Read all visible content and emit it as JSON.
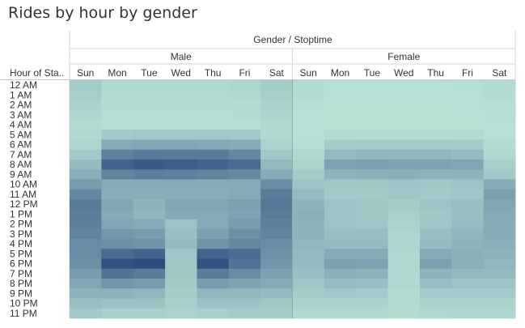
{
  "title": "Rides by hour by gender",
  "chart_data": {
    "type": "heatmap",
    "title": "Rides by hour by gender",
    "column_header": "Gender / Stoptime",
    "row_header": "Hour of Sta..",
    "groups": [
      "Male",
      "Female"
    ],
    "days": [
      "Sun",
      "Mon",
      "Tue",
      "Wed",
      "Thu",
      "Fri",
      "Sat"
    ],
    "hours": [
      "12 AM",
      "1 AM",
      "2 AM",
      "3 AM",
      "4 AM",
      "5 AM",
      "6 AM",
      "7 AM",
      "8 AM",
      "9 AM",
      "10 AM",
      "11 AM",
      "12 PM",
      "1 PM",
      "2 PM",
      "3 PM",
      "4 PM",
      "5 PM",
      "6 PM",
      "7 PM",
      "8 PM",
      "9 PM",
      "10 PM",
      "11 PM"
    ],
    "color_scale": [
      "#b9e3d7",
      "#24467a"
    ],
    "values": {
      "Male": [
        [
          0.15,
          0.06,
          0.06,
          0.06,
          0.06,
          0.08,
          0.14
        ],
        [
          0.13,
          0.05,
          0.05,
          0.05,
          0.05,
          0.06,
          0.13
        ],
        [
          0.11,
          0.04,
          0.04,
          0.04,
          0.04,
          0.05,
          0.11
        ],
        [
          0.08,
          0.03,
          0.03,
          0.03,
          0.03,
          0.04,
          0.09
        ],
        [
          0.05,
          0.03,
          0.03,
          0.03,
          0.03,
          0.03,
          0.06
        ],
        [
          0.06,
          0.16,
          0.17,
          0.17,
          0.17,
          0.16,
          0.06
        ],
        [
          0.08,
          0.35,
          0.38,
          0.38,
          0.37,
          0.35,
          0.1
        ],
        [
          0.16,
          0.62,
          0.66,
          0.65,
          0.65,
          0.58,
          0.17
        ],
        [
          0.25,
          0.8,
          0.86,
          0.84,
          0.8,
          0.76,
          0.26
        ],
        [
          0.33,
          0.6,
          0.63,
          0.62,
          0.6,
          0.57,
          0.35
        ],
        [
          0.45,
          0.35,
          0.35,
          0.36,
          0.35,
          0.36,
          0.55
        ],
        [
          0.58,
          0.33,
          0.33,
          0.34,
          0.33,
          0.35,
          0.65
        ],
        [
          0.66,
          0.38,
          0.3,
          0.38,
          0.38,
          0.42,
          0.68
        ],
        [
          0.64,
          0.35,
          0.28,
          0.36,
          0.36,
          0.4,
          0.65
        ],
        [
          0.62,
          0.38,
          0.35,
          0.2,
          0.35,
          0.45,
          0.62
        ],
        [
          0.6,
          0.48,
          0.45,
          0.22,
          0.42,
          0.52,
          0.6
        ],
        [
          0.55,
          0.52,
          0.5,
          0.25,
          0.5,
          0.58,
          0.55
        ],
        [
          0.55,
          0.75,
          0.8,
          0.18,
          0.8,
          0.75,
          0.52
        ],
        [
          0.52,
          0.92,
          0.95,
          0.18,
          0.92,
          0.7,
          0.48
        ],
        [
          0.45,
          0.7,
          0.65,
          0.18,
          0.65,
          0.55,
          0.42
        ],
        [
          0.38,
          0.48,
          0.45,
          0.16,
          0.45,
          0.4,
          0.35
        ],
        [
          0.3,
          0.3,
          0.28,
          0.14,
          0.28,
          0.28,
          0.25
        ],
        [
          0.22,
          0.2,
          0.2,
          0.12,
          0.2,
          0.2,
          0.18
        ],
        [
          0.16,
          0.12,
          0.12,
          0.1,
          0.12,
          0.14,
          0.14
        ]
      ],
      "Female": [
        [
          0.05,
          0.02,
          0.02,
          0.02,
          0.02,
          0.03,
          0.05
        ],
        [
          0.04,
          0.02,
          0.02,
          0.02,
          0.02,
          0.02,
          0.04
        ],
        [
          0.03,
          0.01,
          0.01,
          0.01,
          0.01,
          0.02,
          0.03
        ],
        [
          0.02,
          0.01,
          0.01,
          0.01,
          0.01,
          0.01,
          0.03
        ],
        [
          0.02,
          0.01,
          0.01,
          0.01,
          0.01,
          0.01,
          0.02
        ],
        [
          0.02,
          0.05,
          0.05,
          0.05,
          0.05,
          0.05,
          0.02
        ],
        [
          0.03,
          0.14,
          0.15,
          0.15,
          0.15,
          0.14,
          0.04
        ],
        [
          0.06,
          0.26,
          0.28,
          0.28,
          0.28,
          0.25,
          0.07
        ],
        [
          0.1,
          0.4,
          0.42,
          0.4,
          0.4,
          0.38,
          0.12
        ],
        [
          0.14,
          0.3,
          0.32,
          0.32,
          0.3,
          0.3,
          0.16
        ],
        [
          0.2,
          0.18,
          0.18,
          0.2,
          0.18,
          0.2,
          0.35
        ],
        [
          0.25,
          0.16,
          0.16,
          0.18,
          0.16,
          0.18,
          0.42
        ],
        [
          0.3,
          0.2,
          0.18,
          0.14,
          0.2,
          0.22,
          0.38
        ],
        [
          0.32,
          0.2,
          0.18,
          0.12,
          0.18,
          0.22,
          0.36
        ],
        [
          0.3,
          0.2,
          0.18,
          0.1,
          0.18,
          0.24,
          0.35
        ],
        [
          0.3,
          0.22,
          0.22,
          0.08,
          0.22,
          0.28,
          0.35
        ],
        [
          0.28,
          0.25,
          0.25,
          0.08,
          0.25,
          0.3,
          0.32
        ],
        [
          0.26,
          0.35,
          0.35,
          0.07,
          0.35,
          0.32,
          0.3
        ],
        [
          0.25,
          0.42,
          0.4,
          0.07,
          0.42,
          0.32,
          0.28
        ],
        [
          0.22,
          0.32,
          0.3,
          0.07,
          0.3,
          0.26,
          0.25
        ],
        [
          0.18,
          0.24,
          0.22,
          0.06,
          0.22,
          0.2,
          0.2
        ],
        [
          0.14,
          0.16,
          0.15,
          0.05,
          0.15,
          0.15,
          0.15
        ],
        [
          0.1,
          0.1,
          0.1,
          0.05,
          0.1,
          0.1,
          0.1
        ],
        [
          0.07,
          0.07,
          0.07,
          0.04,
          0.07,
          0.08,
          0.08
        ]
      ]
    }
  }
}
